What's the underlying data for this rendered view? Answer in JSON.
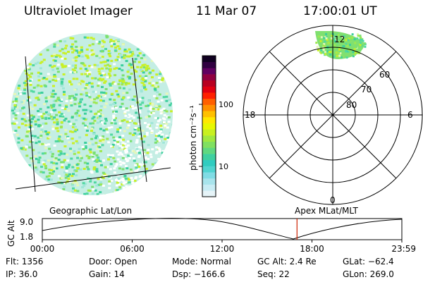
{
  "header": {
    "instrument": "Ultraviolet Imager",
    "date": "11 Mar 07",
    "time": "17:00:01 UT"
  },
  "colorbar": {
    "label": "photon cm⁻²s⁻¹",
    "tick_labels": [
      "100",
      "10"
    ],
    "colors": [
      "#e6f4f8",
      "#c8ecf4",
      "#a8e4ec",
      "#80dce4",
      "#50d4d0",
      "#30ccc0",
      "#40d0a0",
      "#60d880",
      "#80e060",
      "#a0e840",
      "#c8f020",
      "#e8f800",
      "#ffe800",
      "#ffc000",
      "#ff9000",
      "#ff6000",
      "#ff2000",
      "#e00010",
      "#b80020",
      "#900040",
      "#600060",
      "#300040",
      "#100020"
    ]
  },
  "polar": {
    "mlt_labels": [
      "12",
      "18",
      "6",
      "0"
    ],
    "lat_labels": [
      "60",
      "70",
      "80"
    ]
  },
  "timeline": {
    "left_label": "Geographic Lat/Lon",
    "right_label": "Apex  MLat/MLT",
    "axis_label": "GC Alt",
    "y_ticks": [
      "9.0",
      "1.8"
    ],
    "x_ticks": [
      "00:00",
      "06:00",
      "12:00",
      "18:00",
      "23:59"
    ],
    "current_time_fraction": 0.7085,
    "colors": {
      "marker": "#cc2200"
    }
  },
  "info": {
    "flt": "Flt: 1356",
    "ip": "IP: 36.0",
    "door": "Door: Open",
    "gain": "Gain: 14",
    "mode": "Mode: Normal",
    "dsp": "Dsp: −166.6",
    "gc_alt": "GC Alt: 2.4 Re",
    "seq": "Seq: 22",
    "glat": "GLat: −62.4",
    "glon": "GLon: 269.0"
  }
}
